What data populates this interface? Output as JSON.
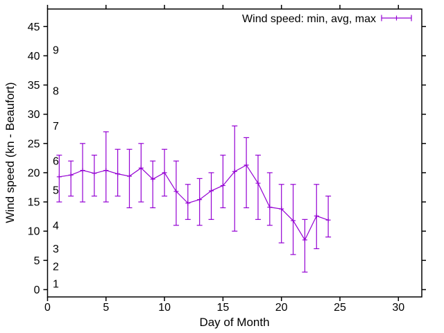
{
  "window": {
    "background": "#ffffff",
    "axis_color": "#000000",
    "text_color": "#000000"
  },
  "chart_data": {
    "type": "line",
    "subtype": "yerrorlines",
    "title": "",
    "legend_label": "Wind speed: min, avg, max",
    "legend_position": "top-right",
    "xlabel": "Day of Month",
    "ylabel": "Wind speed (kn - Beaufort)",
    "xlim": [
      0,
      32
    ],
    "ylim": [
      -1.25,
      48
    ],
    "xticks": [
      0,
      5,
      10,
      15,
      20,
      25,
      30
    ],
    "yticks": [
      0,
      5,
      10,
      15,
      20,
      25,
      30,
      35,
      40,
      45
    ],
    "grid": false,
    "series_color": "#9400d3",
    "beaufort_scale": [
      {
        "force": "1",
        "kn": 1
      },
      {
        "force": "2",
        "kn": 4
      },
      {
        "force": "3",
        "kn": 7
      },
      {
        "force": "4",
        "kn": 11
      },
      {
        "force": "5",
        "kn": 17
      },
      {
        "force": "6",
        "kn": 22
      },
      {
        "force": "7",
        "kn": 28
      },
      {
        "force": "8",
        "kn": 34
      },
      {
        "force": "9",
        "kn": 41
      }
    ],
    "x": [
      1,
      2,
      3,
      4,
      5,
      6,
      7,
      8,
      9,
      10,
      11,
      12,
      13,
      14,
      15,
      16,
      17,
      18,
      19,
      20,
      21,
      22,
      23,
      24
    ],
    "series": [
      {
        "name": "min",
        "values": [
          15,
          16,
          15,
          16,
          15,
          16,
          14,
          15,
          14,
          16,
          11,
          12,
          11,
          12,
          14,
          10,
          14,
          12,
          11,
          8,
          6,
          3,
          7,
          9
        ]
      },
      {
        "name": "avg",
        "values": [
          19.3,
          19.6,
          20.4,
          19.9,
          20.4,
          19.8,
          19.4,
          20.8,
          18.9,
          20.0,
          16.8,
          14.8,
          15.4,
          16.9,
          17.8,
          20.2,
          21.3,
          18.2,
          14.1,
          13.8,
          11.8,
          8.5,
          12.6,
          11.9
        ]
      },
      {
        "name": "max",
        "values": [
          23,
          22,
          25,
          23,
          27,
          24,
          24,
          25,
          22,
          24,
          22,
          18,
          19,
          20,
          23,
          28,
          26,
          23,
          20,
          18,
          18,
          12,
          18,
          16
        ]
      }
    ]
  }
}
